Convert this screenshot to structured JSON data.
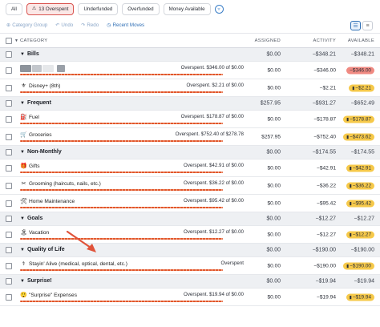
{
  "filters": {
    "all": "All",
    "overspent": "13 Overspent",
    "underfunded": "Underfunded",
    "overfunded": "Overfunded",
    "money_available": "Money Available"
  },
  "toolbar": {
    "category_group": "Category Group",
    "undo": "Undo",
    "redo": "Redo",
    "recent_moves": "Recent Moves"
  },
  "header": {
    "category": "CATEGORY",
    "assigned": "ASSIGNED",
    "activity": "ACTIVITY",
    "available": "AVAILABLE"
  },
  "rows": [
    {
      "kind": "group",
      "name": "Bills",
      "assigned": "$0.00",
      "activity": "−$348.21",
      "available": "−$348.21"
    },
    {
      "kind": "cat",
      "name": "",
      "blurred": true,
      "emoji": "",
      "status": "Overspent. $346.00 of $0.00",
      "assigned": "$0.00",
      "activity": "−$346.00",
      "available": "−$346.00",
      "badge": "red"
    },
    {
      "kind": "cat",
      "name": "Disney+ (8th)",
      "emoji": "⚜",
      "status": "Overspent. $2.21 of $0.00",
      "assigned": "$0.00",
      "activity": "−$2.21",
      "available": "−$2.21",
      "badge": "yellow"
    },
    {
      "kind": "group",
      "name": "Frequent",
      "assigned": "$257.95",
      "activity": "−$931.27",
      "available": "−$652.49"
    },
    {
      "kind": "cat",
      "name": "Fuel",
      "emoji": "⛽",
      "status": "Overspent. $178.87 of $0.00",
      "assigned": "$0.00",
      "activity": "−$178.87",
      "available": "−$178.87",
      "badge": "yellow"
    },
    {
      "kind": "cat",
      "name": "Groceries",
      "emoji": "🛒",
      "status": "Overspent. $752.40 of $278.78",
      "assigned": "$257.95",
      "activity": "−$752.40",
      "available": "−$473.62",
      "badge": "yellow"
    },
    {
      "kind": "group",
      "name": "Non-Monthly",
      "assigned": "$0.00",
      "activity": "−$174.55",
      "available": "−$174.55"
    },
    {
      "kind": "cat",
      "name": "Gifts",
      "emoji": "🎁",
      "status": "Overspent. $42.91 of $0.00",
      "assigned": "$0.00",
      "activity": "−$42.91",
      "available": "−$42.91",
      "badge": "yellow"
    },
    {
      "kind": "cat",
      "name": "Grooming (haircuts, nails, etc.)",
      "emoji": "✂",
      "status": "Overspent. $36.22 of $0.00",
      "assigned": "$0.00",
      "activity": "−$36.22",
      "available": "−$36.22",
      "badge": "yellow"
    },
    {
      "kind": "cat",
      "name": "Home Maintenance",
      "emoji": "🛠",
      "status": "Overspent. $95.42 of $0.00",
      "assigned": "$0.00",
      "activity": "−$95.42",
      "available": "−$95.42",
      "badge": "yellow"
    },
    {
      "kind": "group",
      "name": "Goals",
      "assigned": "$0.00",
      "activity": "−$12.27",
      "available": "−$12.27"
    },
    {
      "kind": "cat",
      "name": "Vacation",
      "emoji": "🏝",
      "status": "Overspent. $12.27 of $0.00",
      "assigned": "$0.00",
      "activity": "−$12.27",
      "available": "−$12.27",
      "badge": "yellow"
    },
    {
      "kind": "group",
      "name": "Quality of Life",
      "assigned": "$0.00",
      "activity": "−$190.00",
      "available": "−$190.00"
    },
    {
      "kind": "cat",
      "name": "Stayin' Alive (medical, optical, dental, etc.)",
      "emoji": "⚕",
      "status": "Overspent",
      "assigned": "$0.00",
      "activity": "−$190.00",
      "available": "−$190.00",
      "badge": "yellow"
    },
    {
      "kind": "group",
      "name": "Surprise!",
      "assigned": "$0.00",
      "activity": "−$19.94",
      "available": "−$19.94"
    },
    {
      "kind": "cat",
      "name": "\"Surprise\" Expenses",
      "emoji": "😲",
      "status": "Overspent. $19.94 of $0.00",
      "assigned": "$0.00",
      "activity": "−$19.94",
      "available": "−$19.94",
      "badge": "yellow"
    }
  ],
  "colors": {
    "accent": "#2f6fb5",
    "overspent_bar": "#e2562b",
    "badge_yellow": "#f6c94a",
    "badge_red": "#f08a82",
    "annotation_arrow": "#e0533a"
  }
}
